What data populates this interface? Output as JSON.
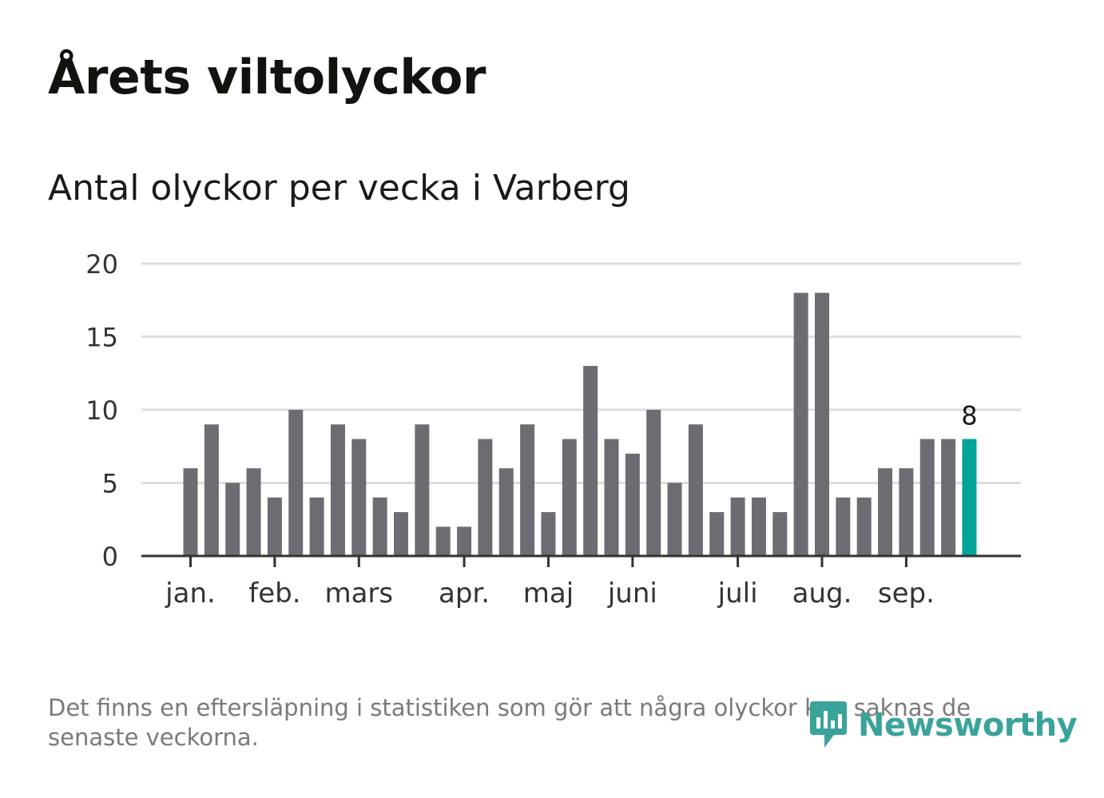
{
  "title": "Årets viltolyckor",
  "subtitle": "Antal olyckor per vecka i Varberg",
  "footnote": "Det finns en eftersläpning i statistiken som gör att några olyckor kan saknas de senaste veckorna.",
  "logo": {
    "text": "Newsworthy",
    "icon": "newsworthy-logo-icon"
  },
  "colors": {
    "bar": "#6d6c72",
    "highlight": "#00a499",
    "grid": "#dddddd",
    "axis": "#333333",
    "text": "#333333"
  },
  "chart_data": {
    "type": "bar",
    "title": "Antal olyckor per vecka i Varberg",
    "xlabel": "",
    "ylabel": "",
    "ylim": [
      0,
      20
    ],
    "yticks": [
      0,
      5,
      10,
      15,
      20
    ],
    "grid": true,
    "weeks": [
      1,
      2,
      3,
      4,
      5,
      6,
      7,
      8,
      9,
      10,
      11,
      12,
      13,
      14,
      15,
      16,
      17,
      18,
      19,
      20,
      21,
      22,
      23,
      24,
      25,
      26,
      27,
      28,
      29,
      30,
      31,
      32,
      33,
      34,
      35,
      36,
      37,
      38
    ],
    "values": [
      6,
      9,
      5,
      6,
      4,
      10,
      4,
      9,
      8,
      4,
      3,
      9,
      2,
      2,
      8,
      6,
      9,
      3,
      8,
      13,
      8,
      7,
      10,
      5,
      9,
      3,
      4,
      4,
      3,
      18,
      18,
      4,
      4,
      6,
      6,
      8,
      8,
      8
    ],
    "highlight_index": 37,
    "highlight_label": "8",
    "month_ticks": [
      {
        "label": "jan.",
        "position": 1
      },
      {
        "label": "feb.",
        "position": 5
      },
      {
        "label": "mars",
        "position": 9
      },
      {
        "label": "apr.",
        "position": 14
      },
      {
        "label": "maj",
        "position": 18
      },
      {
        "label": "juni",
        "position": 22
      },
      {
        "label": "juli",
        "position": 27
      },
      {
        "label": "aug.",
        "position": 31
      },
      {
        "label": "sep.",
        "position": 35
      }
    ]
  }
}
